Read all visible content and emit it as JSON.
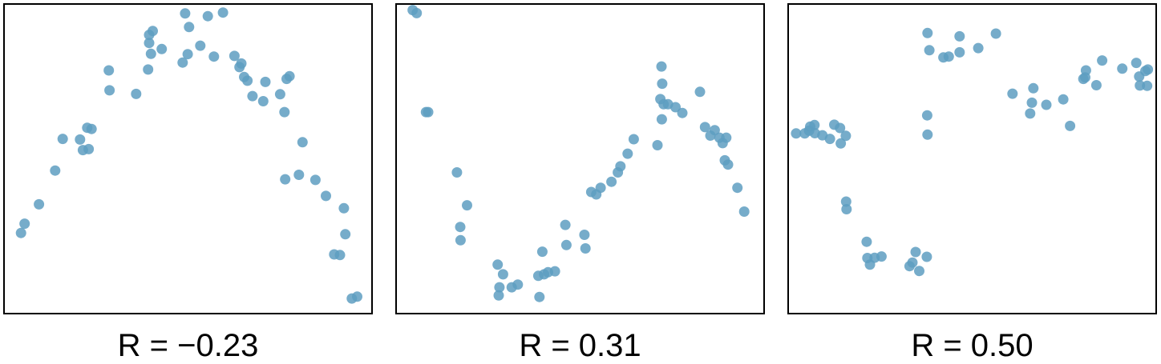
{
  "style": {
    "point_color": "#5e9ec1",
    "frame_color": "#000000"
  },
  "chart_data": [
    {
      "type": "scatter",
      "title": "R = −0.23",
      "xlim": [
        0,
        100
      ],
      "ylim": [
        0,
        100
      ],
      "points": [
        [
          3.6,
          25.4
        ],
        [
          4.6,
          28.5
        ],
        [
          8.6,
          34.9
        ],
        [
          13.1,
          46.1
        ],
        [
          15.2,
          56.6
        ],
        [
          20.0,
          56.4
        ],
        [
          20.8,
          52.9
        ],
        [
          22.4,
          53.2
        ],
        [
          22.0,
          60.3
        ],
        [
          23.2,
          59.9
        ],
        [
          28.0,
          79.3
        ],
        [
          28.2,
          72.7
        ],
        [
          35.6,
          71.5
        ],
        [
          38.9,
          79.6
        ],
        [
          39.2,
          88.4
        ],
        [
          39.2,
          91.1
        ],
        [
          39.7,
          84.8
        ],
        [
          40.2,
          92.4
        ],
        [
          42.7,
          86.4
        ],
        [
          48.5,
          81.9
        ],
        [
          49.2,
          98.2
        ],
        [
          49.9,
          84.7
        ],
        [
          50.3,
          93.7
        ],
        [
          53.4,
          87.5
        ],
        [
          55.5,
          97.3
        ],
        [
          57.2,
          83.9
        ],
        [
          59.7,
          98.5
        ],
        [
          62.9,
          84.1
        ],
        [
          64.3,
          80.4
        ],
        [
          64.8,
          81.6
        ],
        [
          65.6,
          77.1
        ],
        [
          66.5,
          75.9
        ],
        [
          67.9,
          70.8
        ],
        [
          70.9,
          69.1
        ],
        [
          71.5,
          75.5
        ],
        [
          75.6,
          71.4
        ],
        [
          76.8,
          65.5
        ],
        [
          77.4,
          76.5
        ],
        [
          78.2,
          77.4
        ],
        [
          77.0,
          43.2
        ],
        [
          80.8,
          44.7
        ],
        [
          81.8,
          55.5
        ],
        [
          85.4,
          43.0
        ],
        [
          88.3,
          37.7
        ],
        [
          90.6,
          18.3
        ],
        [
          92.2,
          18.1
        ],
        [
          93.3,
          33.6
        ],
        [
          93.7,
          25.0
        ],
        [
          95.5,
          3.7
        ],
        [
          97.0,
          4.3
        ]
      ]
    },
    {
      "type": "scatter",
      "title": "R = 0.31",
      "xlim": [
        0,
        100
      ],
      "ylim": [
        0,
        100
      ],
      "points": [
        [
          3.5,
          99.3
        ],
        [
          4.6,
          98.3
        ],
        [
          7.2,
          65.5
        ],
        [
          7.8,
          65.5
        ],
        [
          15.8,
          45.5
        ],
        [
          16.7,
          27.4
        ],
        [
          16.8,
          23.0
        ],
        [
          18.6,
          34.6
        ],
        [
          27.1,
          14.9
        ],
        [
          27.6,
          7.4
        ],
        [
          27.4,
          4.7
        ],
        [
          28.6,
          11.7
        ],
        [
          31.0,
          7.4
        ],
        [
          32.7,
          8.3
        ],
        [
          38.4,
          11.2
        ],
        [
          39.5,
          19.2
        ],
        [
          38.7,
          4.2
        ],
        [
          40.0,
          11.7
        ],
        [
          41.1,
          12.4
        ],
        [
          43.0,
          12.7
        ],
        [
          45.9,
          28.1
        ],
        [
          46.2,
          21.4
        ],
        [
          51.2,
          24.8
        ],
        [
          51.5,
          20.3
        ],
        [
          53.1,
          39.0
        ],
        [
          54.5,
          38.2
        ],
        [
          55.7,
          40.4
        ],
        [
          58.7,
          42.4
        ],
        [
          60.5,
          45.5
        ],
        [
          61.2,
          47.5
        ],
        [
          63.2,
          51.7
        ],
        [
          64.9,
          56.5
        ],
        [
          71.5,
          54.5
        ],
        [
          72.3,
          69.8
        ],
        [
          72.7,
          63.1
        ],
        [
          72.8,
          74.9
        ],
        [
          72.6,
          80.6
        ],
        [
          73.2,
          68.1
        ],
        [
          74.4,
          68.1
        ],
        [
          76.5,
          67.1
        ],
        [
          78.4,
          65.2
        ],
        [
          83.3,
          72.2
        ],
        [
          84.7,
          60.5
        ],
        [
          86.2,
          57.7
        ],
        [
          87.4,
          59.5
        ],
        [
          88.7,
          57.0
        ],
        [
          89.6,
          55.2
        ],
        [
          90.6,
          57.0
        ],
        [
          90.2,
          49.5
        ],
        [
          91.1,
          48.1
        ],
        [
          93.7,
          40.4
        ],
        [
          95.6,
          32.5
        ]
      ]
    },
    {
      "type": "scatter",
      "title": "R = 0.50",
      "xlim": [
        0,
        100
      ],
      "ylim": [
        0,
        100
      ],
      "points": [
        [
          1.1,
          58.4
        ],
        [
          3.5,
          58.4
        ],
        [
          4.7,
          59.3
        ],
        [
          5.0,
          60.7
        ],
        [
          6.2,
          61.2
        ],
        [
          6.3,
          58.5
        ],
        [
          8.4,
          57.8
        ],
        [
          10.5,
          56.6
        ],
        [
          11.7,
          61.3
        ],
        [
          13.5,
          55.1
        ],
        [
          13.3,
          60.2
        ],
        [
          14.9,
          57.6
        ],
        [
          15.0,
          35.8
        ],
        [
          15.1,
          33.3
        ],
        [
          20.7,
          22.5
        ],
        [
          20.9,
          17.1
        ],
        [
          21.6,
          14.9
        ],
        [
          22.9,
          17.2
        ],
        [
          24.8,
          17.6
        ],
        [
          32.6,
          14.4
        ],
        [
          33.4,
          15.6
        ],
        [
          34.3,
          19.1
        ],
        [
          35.3,
          12.8
        ],
        [
          37.4,
          17.5
        ],
        [
          37.5,
          64.4
        ],
        [
          37.6,
          58.0
        ],
        [
          37.6,
          91.7
        ],
        [
          38.1,
          86.0
        ],
        [
          42.0,
          83.6
        ],
        [
          43.5,
          83.9
        ],
        [
          46.5,
          85.3
        ],
        [
          46.5,
          90.6
        ],
        [
          51.7,
          86.7
        ],
        [
          56.6,
          91.5
        ],
        [
          61.2,
          71.6
        ],
        [
          66.1,
          65.0
        ],
        [
          66.6,
          68.6
        ],
        [
          67.0,
          73.4
        ],
        [
          70.6,
          67.9
        ],
        [
          75.3,
          69.7
        ],
        [
          77.2,
          60.9
        ],
        [
          80.9,
          76.5
        ],
        [
          81.4,
          77.0
        ],
        [
          81.6,
          79.3
        ],
        [
          84.5,
          74.4
        ],
        [
          86.1,
          82.6
        ],
        [
          91.7,
          79.9
        ],
        [
          95.6,
          81.8
        ],
        [
          96.4,
          77.3
        ],
        [
          96.6,
          74.3
        ],
        [
          98.1,
          79.1
        ],
        [
          98.8,
          79.6
        ],
        [
          98.6,
          74.2
        ]
      ]
    }
  ]
}
